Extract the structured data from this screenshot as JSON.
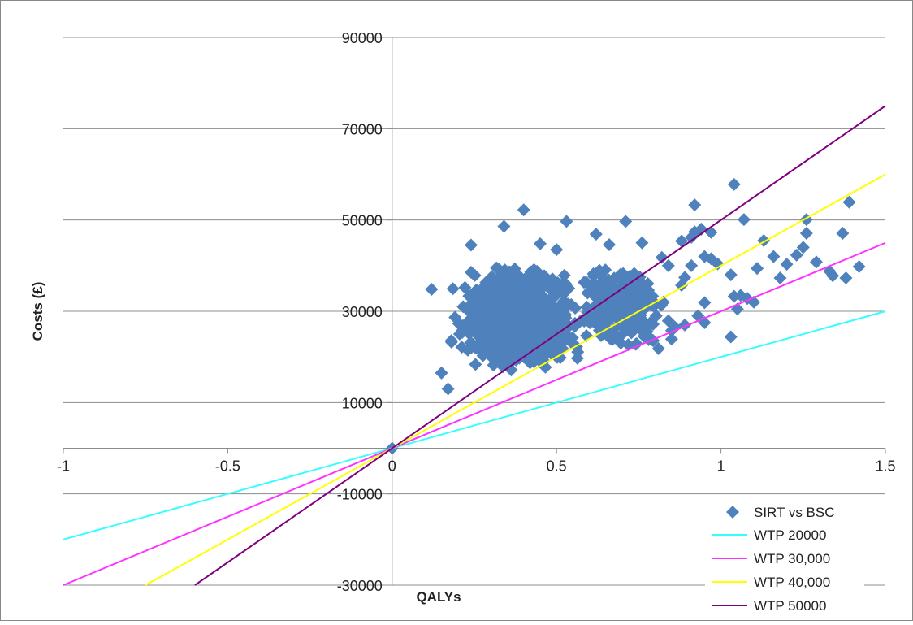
{
  "chart_data": {
    "type": "scatter",
    "title": "",
    "xlabel": "QALYs",
    "ylabel": "Costs (£)",
    "xlim": [
      -1,
      1.5
    ],
    "ylim": [
      -30000,
      90000
    ],
    "x_ticks": [
      -1,
      -0.5,
      0,
      0.5,
      1,
      1.5
    ],
    "x_tick_labels": [
      "-1",
      "-0.5",
      "0",
      "0.5",
      "1",
      "1.5"
    ],
    "y_ticks": [
      -30000,
      -10000,
      10000,
      30000,
      50000,
      70000,
      90000
    ],
    "y_tick_labels": [
      "-30000",
      "-10000",
      "10000",
      "30000",
      "50000",
      "70000",
      "90000"
    ],
    "grid": "horizontal",
    "legend_position": "bottom-right",
    "scatter_series": {
      "name": "SIRT vs BSC",
      "color": "#4F81BD",
      "points": [
        [
          0,
          0
        ],
        [
          0.12,
          34800
        ],
        [
          0.24,
          44500
        ],
        [
          0.34,
          48600
        ],
        [
          0.4,
          52200
        ],
        [
          0.53,
          49700
        ],
        [
          0.71,
          49700
        ],
        [
          0.76,
          45000
        ],
        [
          0.62,
          46900
        ],
        [
          0.66,
          44600
        ],
        [
          0.45,
          44800
        ],
        [
          0.5,
          43500
        ],
        [
          0.17,
          13000
        ],
        [
          0.15,
          16500
        ],
        [
          0.81,
          21800
        ],
        [
          0.78,
          23800
        ],
        [
          0.86,
          26500
        ],
        [
          0.89,
          27000
        ],
        [
          0.92,
          53300
        ],
        [
          0.92,
          47400
        ],
        [
          0.94,
          48000
        ],
        [
          0.97,
          47300
        ],
        [
          0.88,
          45400
        ],
        [
          0.91,
          46200
        ],
        [
          1.04,
          57800
        ],
        [
          1.07,
          50100
        ],
        [
          1.13,
          45500
        ],
        [
          1.03,
          24400
        ],
        [
          1.05,
          30500
        ],
        [
          1.06,
          33500
        ],
        [
          1.08,
          32800
        ],
        [
          1.1,
          32000
        ],
        [
          1.11,
          39400
        ],
        [
          1.16,
          42000
        ],
        [
          1.18,
          37300
        ],
        [
          1.2,
          40300
        ],
        [
          1.23,
          42300
        ],
        [
          1.25,
          44000
        ],
        [
          1.26,
          47100
        ],
        [
          1.26,
          50100
        ],
        [
          1.29,
          40800
        ],
        [
          1.33,
          38800
        ],
        [
          1.34,
          37800
        ],
        [
          1.37,
          47100
        ],
        [
          1.38,
          37300
        ],
        [
          1.39,
          53900
        ],
        [
          1.42,
          39800
        ],
        [
          0.95,
          31900
        ],
        [
          0.95,
          27500
        ],
        [
          0.93,
          29000
        ],
        [
          0.99,
          40400
        ],
        [
          1.03,
          38000
        ],
        [
          1.04,
          33300
        ],
        [
          0.82,
          41800
        ],
        [
          0.84,
          40000
        ],
        [
          0.84,
          27900
        ],
        [
          0.85,
          25800
        ],
        [
          0.85,
          23900
        ],
        [
          0.95,
          42000
        ],
        [
          0.97,
          41500
        ],
        [
          0.91,
          40000
        ],
        [
          0.89,
          37400
        ],
        [
          0.88,
          35700
        ]
      ]
    },
    "lines": [
      {
        "name": "WTP 20000",
        "slope": 20000,
        "color": "#33FFFF"
      },
      {
        "name": "WTP 30,000",
        "slope": 30000,
        "color": "#FF33FF"
      },
      {
        "name": "WTP 40,000",
        "slope": 40000,
        "color": "#FFFF00"
      },
      {
        "name": "WTP 50000",
        "slope": 50000,
        "color": "#7F007F"
      }
    ],
    "cluster_regions": [
      {
        "x_range": [
          0.15,
          0.6
        ],
        "y_range": [
          17000,
          40000
        ],
        "count": 900
      },
      {
        "x_range": [
          0.55,
          0.85
        ],
        "y_range": [
          22000,
          40000
        ],
        "count": 260
      }
    ]
  }
}
